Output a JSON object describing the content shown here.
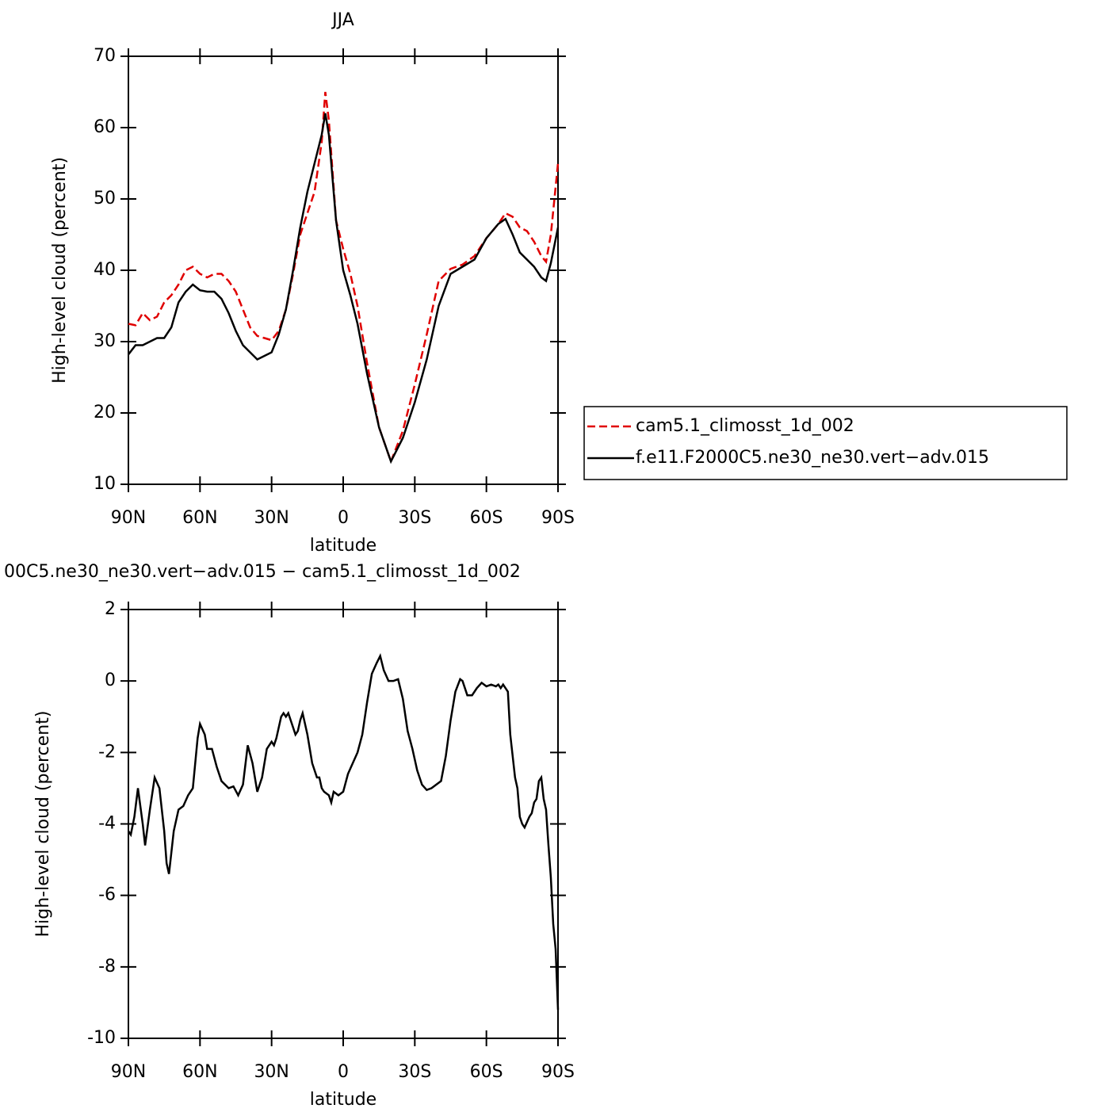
{
  "chart_data": [
    {
      "type": "line",
      "title": "JJA",
      "xlabel": "latitude",
      "ylabel": "High-level cloud (percent)",
      "x": [
        90,
        87,
        84,
        81,
        78,
        75,
        72,
        69,
        66,
        63,
        60,
        57,
        54,
        51,
        48,
        45,
        42,
        39,
        36,
        33,
        30,
        27,
        24,
        21,
        18,
        15,
        12,
        9,
        7.5,
        6,
        3,
        0,
        -3,
        -6,
        -10,
        -15,
        -20,
        -25,
        -30,
        -35,
        -40,
        -45,
        -50,
        -55,
        -60,
        -65,
        -68,
        -71,
        -74,
        -77,
        -80,
        -83,
        -85,
        -87,
        -90
      ],
      "series": [
        {
          "name": "cam5.1_climosst_1d_002",
          "color": "#e00000",
          "style": "dashed",
          "values": [
            32.5,
            32.3,
            34,
            33,
            33.5,
            35.5,
            36.5,
            38,
            40,
            40.5,
            39.5,
            39,
            39.5,
            39.5,
            38.5,
            37,
            34.5,
            32,
            30.8,
            30.5,
            30.2,
            31.5,
            34.5,
            39.5,
            45,
            48,
            51,
            58,
            65,
            61,
            47,
            43,
            39.5,
            35,
            27,
            18,
            13.2,
            17.5,
            24,
            31,
            38.5,
            40.2,
            40.8,
            42,
            44.5,
            46.5,
            48,
            47.5,
            46,
            45.5,
            44,
            42,
            41.2,
            45,
            55
          ]
        },
        {
          "name": "f.e11.F2000C5.ne30_ne30.vert−adv.015",
          "color": "#000000",
          "style": "solid",
          "values": [
            28.2,
            29.5,
            29.5,
            30,
            30.5,
            30.5,
            32,
            35.5,
            37,
            38,
            37.2,
            37,
            37,
            36,
            34,
            31.5,
            29.5,
            28.5,
            27.5,
            28,
            28.5,
            31,
            34.5,
            40,
            46,
            51,
            55,
            59,
            62,
            59,
            47,
            40,
            36.5,
            32.5,
            25.5,
            18,
            13.2,
            16.5,
            21.5,
            27.5,
            35,
            39.5,
            40.5,
            41.5,
            44.5,
            46.5,
            47.2,
            45,
            42.5,
            41.5,
            40.5,
            39,
            38.5,
            41,
            46
          ]
        }
      ],
      "xlim": [
        90,
        -90
      ],
      "xticks": [
        {
          "value": 90,
          "label": "90N"
        },
        {
          "value": 60,
          "label": "60N"
        },
        {
          "value": 30,
          "label": "30N"
        },
        0,
        {
          "value": -30,
          "label": "30S"
        },
        {
          "value": -60,
          "label": "60S"
        },
        {
          "value": -90,
          "label": "90S"
        }
      ],
      "ylim": [
        10,
        70
      ],
      "yticks": [
        10,
        20,
        30,
        40,
        50,
        60,
        70
      ],
      "legend": "right"
    },
    {
      "type": "line",
      "title": "00C5.ne30_ne30.vert−adv.015 − cam5.1_climosst_1d_002",
      "xlabel": "latitude",
      "ylabel": "High-level cloud (percent)",
      "x": [
        90,
        89,
        87.5,
        86,
        84,
        83,
        81,
        79,
        77,
        75,
        74,
        73,
        71,
        69,
        67,
        65,
        63,
        61,
        60,
        58,
        57,
        55,
        53,
        51,
        48,
        46,
        44,
        42,
        40,
        38,
        36,
        34,
        32,
        30,
        29,
        28,
        26,
        25,
        24,
        23,
        22,
        20,
        19,
        18,
        17,
        15,
        13,
        11,
        10,
        9,
        8,
        6,
        5,
        4,
        2,
        0,
        -2,
        -4,
        -6,
        -8,
        -10,
        -12,
        -14,
        -15.5,
        -17,
        -19,
        -21,
        -23,
        -25,
        -27,
        -29,
        -31,
        -33,
        -35,
        -37,
        -39,
        -41,
        -43,
        -45,
        -47,
        -49,
        -50,
        -52,
        -54,
        -56,
        -58,
        -60,
        -62,
        -64,
        -65,
        -66,
        -67,
        -69,
        -70,
        -72,
        -73,
        -74,
        -75,
        -76,
        -78,
        -79,
        -80,
        -81,
        -82,
        -83,
        -84,
        -85,
        -86,
        -87,
        -88,
        -89,
        -90
      ],
      "values": [
        -4.2,
        -4.3,
        -3.8,
        -3.0,
        -4.0,
        -4.6,
        -3.6,
        -2.7,
        -3.0,
        -4.2,
        -5.1,
        -5.4,
        -4.2,
        -3.6,
        -3.5,
        -3.2,
        -3.0,
        -1.6,
        -1.2,
        -1.5,
        -1.9,
        -1.9,
        -2.4,
        -2.8,
        -3.0,
        -2.95,
        -3.2,
        -2.9,
        -1.8,
        -2.3,
        -3.1,
        -2.7,
        -1.9,
        -1.7,
        -1.8,
        -1.6,
        -1.0,
        -0.9,
        -1.0,
        -0.9,
        -1.1,
        -1.5,
        -1.4,
        -1.1,
        -0.9,
        -1.5,
        -2.3,
        -2.7,
        -2.7,
        -3.0,
        -3.1,
        -3.2,
        -3.4,
        -3.1,
        -3.2,
        -3.1,
        -2.6,
        -2.3,
        -2.0,
        -1.5,
        -0.6,
        0.2,
        0.5,
        0.7,
        0.3,
        0.0,
        0.0,
        0.05,
        -0.5,
        -1.4,
        -1.9,
        -2.5,
        -2.9,
        -3.05,
        -3.0,
        -2.9,
        -2.8,
        -2.1,
        -1.1,
        -0.3,
        0.05,
        0.0,
        -0.4,
        -0.4,
        -0.2,
        -0.05,
        -0.15,
        -0.1,
        -0.15,
        -0.1,
        -0.2,
        -0.1,
        -0.3,
        -1.5,
        -2.7,
        -3.0,
        -3.8,
        -4.0,
        -4.1,
        -3.8,
        -3.7,
        -3.4,
        -3.3,
        -2.8,
        -2.7,
        -3.3,
        -3.6,
        -4.6,
        -5.5,
        -6.8,
        -7.5,
        -9.2
      ],
      "color": "#000000",
      "style": "solid",
      "xlim": [
        90,
        -90
      ],
      "xticks": [
        {
          "value": 90,
          "label": "90N"
        },
        {
          "value": 60,
          "label": "60N"
        },
        {
          "value": 30,
          "label": "30N"
        },
        0,
        {
          "value": -30,
          "label": "30S"
        },
        {
          "value": -60,
          "label": "60S"
        },
        {
          "value": -90,
          "label": "90S"
        }
      ],
      "ylim": [
        -10,
        2
      ],
      "yticks": [
        -10,
        -8,
        -6,
        -4,
        -2,
        0,
        2
      ]
    }
  ]
}
